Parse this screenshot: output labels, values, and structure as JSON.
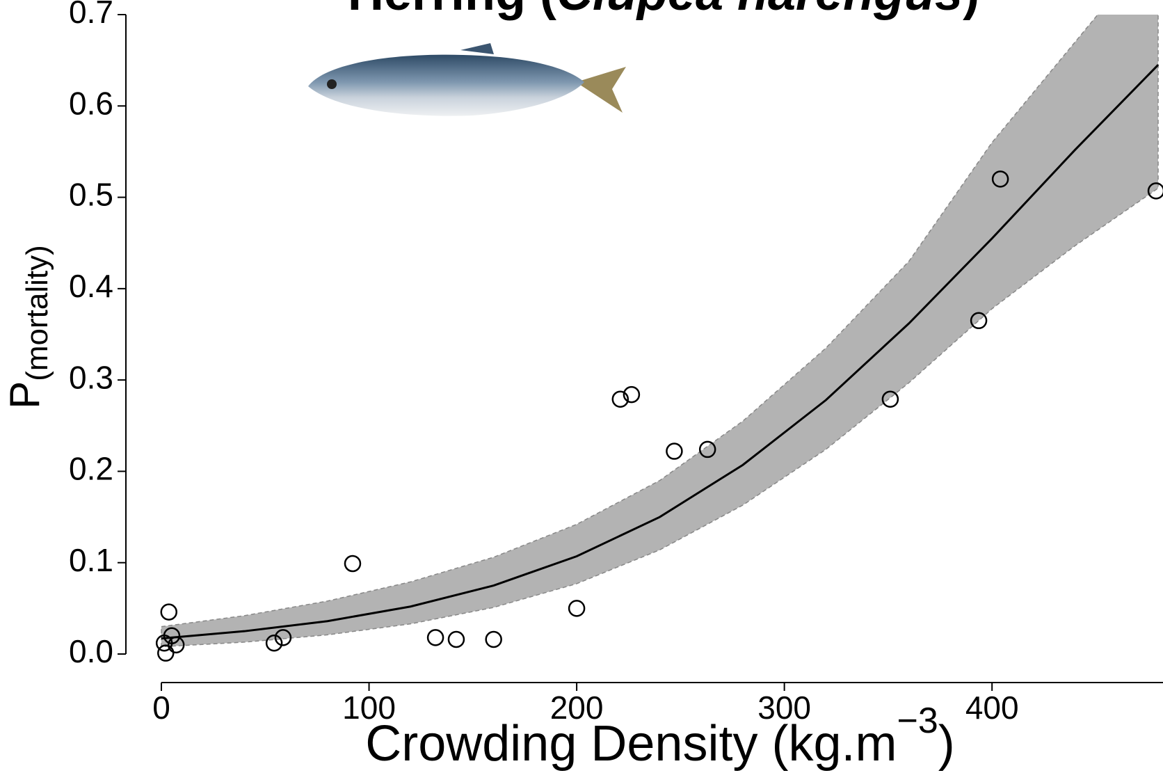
{
  "chart_data": {
    "type": "scatter",
    "title_parts": [
      "Herring (",
      "Clupea harengus",
      ")"
    ],
    "y_label": "P",
    "y_label_sub": "(mortality)",
    "x_label": "Crowding Density (kg.m",
    "x_label_sup": "−3",
    "x_label_end": ")",
    "xlim": [
      0,
      482
    ],
    "ylim": [
      0,
      0.7
    ],
    "xticks": [
      0,
      100,
      200,
      300,
      400
    ],
    "yticks": [
      {
        "value": 0,
        "label": "0.0"
      },
      0.1,
      0.2,
      0.3,
      0.4,
      0.5,
      0.6,
      0.7
    ],
    "series": [
      {
        "x": [
          1.4,
          2.1,
          3.6,
          5,
          7.1,
          54.3,
          58.6,
          92.1,
          132,
          142,
          160,
          200,
          221,
          226.4,
          247,
          263,
          351,
          393.6,
          404,
          479
        ],
        "values": [
          0.012,
          0.001,
          0.046,
          0.02,
          0.01,
          0.012,
          0.018,
          0.099,
          0.018,
          0.016,
          0.016,
          0.05,
          0.279,
          0.284,
          0.222,
          0.224,
          0.279,
          0.365,
          0.52,
          0.507
        ],
        "color": "#000000"
      }
    ],
    "fit": {
      "x": [
        0,
        40,
        80,
        120,
        160,
        200,
        240,
        280,
        320,
        360,
        400,
        440,
        480
      ],
      "values": [
        0.017,
        0.025,
        0.036,
        0.052,
        0.075,
        0.107,
        0.15,
        0.207,
        0.278,
        0.362,
        0.455,
        0.552,
        0.645
      ],
      "lower": [
        0.008,
        0.013,
        0.021,
        0.033,
        0.051,
        0.077,
        0.114,
        0.163,
        0.224,
        0.297,
        0.378,
        0.447,
        0.51
      ],
      "upper": [
        0.03,
        0.042,
        0.058,
        0.079,
        0.106,
        0.142,
        0.19,
        0.255,
        0.335,
        0.43,
        0.56,
        0.67,
        0.78
      ],
      "color": "#000000",
      "band_color": "#b3b3b3"
    }
  }
}
